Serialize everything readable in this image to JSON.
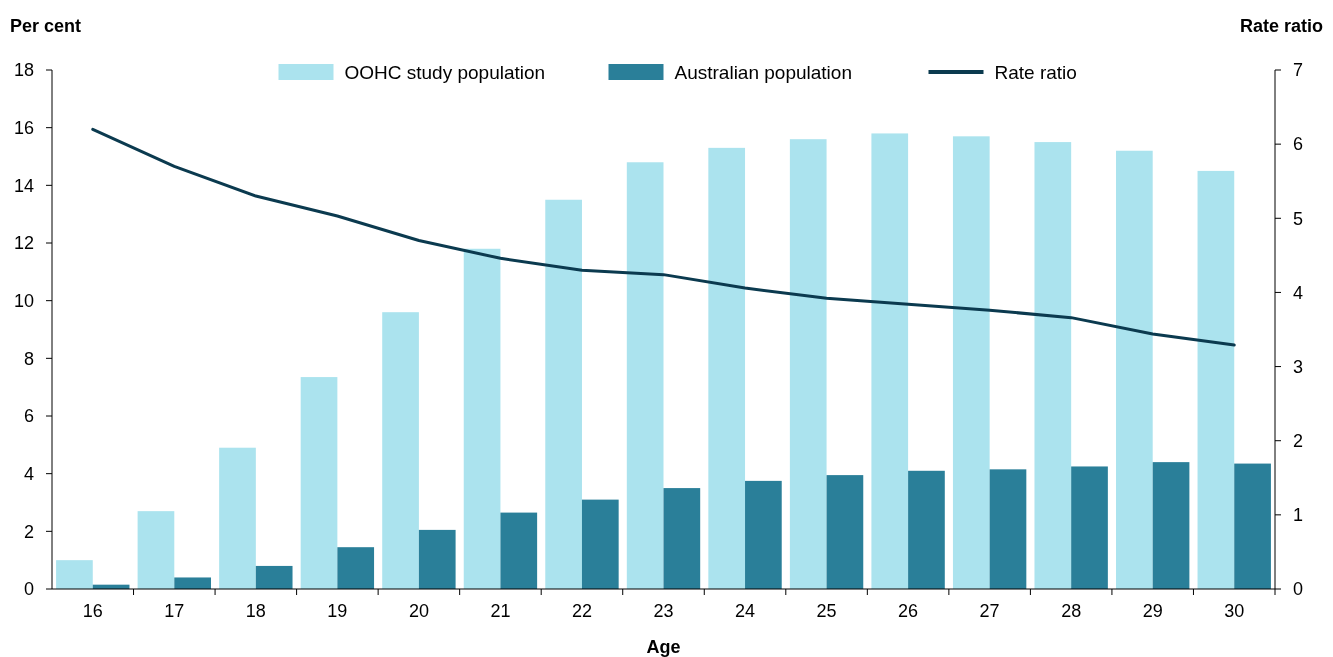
{
  "chart_data": {
    "type": "bar",
    "xlabel": "Age",
    "ylabel": "Per cent",
    "y2label": "Rate ratio",
    "categories": [
      "16",
      "17",
      "18",
      "19",
      "20",
      "21",
      "22",
      "23",
      "24",
      "25",
      "26",
      "27",
      "28",
      "29",
      "30"
    ],
    "series": [
      {
        "name": "OOHC study population",
        "color": "#abe3ee",
        "values": [
          1.0,
          2.7,
          4.9,
          7.35,
          9.6,
          11.8,
          13.5,
          14.8,
          15.3,
          15.6,
          15.8,
          15.7,
          15.5,
          15.2,
          14.5
        ]
      },
      {
        "name": "Australian population",
        "color": "#2a7f99",
        "values": [
          0.15,
          0.4,
          0.8,
          1.45,
          2.05,
          2.65,
          3.1,
          3.5,
          3.75,
          3.95,
          4.1,
          4.15,
          4.25,
          4.4,
          4.35
        ]
      },
      {
        "name": "Rate ratio",
        "type": "line",
        "axis": "y2",
        "color": "#0b3a4f",
        "values": [
          6.2,
          5.7,
          5.3,
          5.03,
          4.7,
          4.46,
          4.3,
          4.24,
          4.06,
          3.92,
          3.84,
          3.76,
          3.66,
          3.44,
          3.29
        ]
      }
    ],
    "ylim": [
      0,
      18
    ],
    "yticks": [
      0,
      2,
      4,
      6,
      8,
      10,
      12,
      14,
      16,
      18
    ],
    "y2lim": [
      0,
      7
    ],
    "y2ticks": [
      0,
      1,
      2,
      3,
      4,
      5,
      6,
      7
    ],
    "legend": "top",
    "grid": false
  }
}
